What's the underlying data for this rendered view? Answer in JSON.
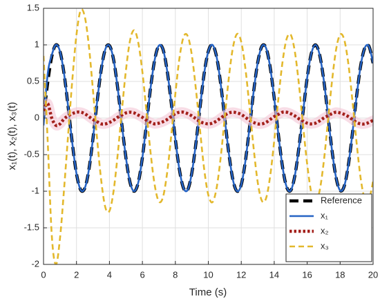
{
  "chart_data": {
    "type": "line",
    "xlabel": "Time (s)",
    "ylabel": "x₁(t), x₂(t), x₃(t)",
    "x": [
      0,
      0.25,
      0.5,
      0.75,
      1,
      1.25,
      1.5,
      1.75,
      2,
      2.25,
      2.5,
      2.75,
      3,
      3.25,
      3.5,
      3.75,
      4,
      4.25,
      4.5,
      4.75,
      5,
      5.25,
      5.5,
      5.75,
      6,
      6.25,
      6.5,
      6.75,
      7,
      7.25,
      7.5,
      7.75,
      8,
      8.25,
      8.5,
      8.75,
      9,
      9.25,
      9.5,
      9.75,
      10,
      10.25,
      10.5,
      10.75,
      11,
      11.25,
      11.5,
      11.75,
      12,
      12.25,
      12.5,
      12.75,
      13,
      13.25,
      13.5,
      13.75,
      14,
      14.25,
      14.5,
      14.75,
      15,
      15.25,
      15.5,
      15.75,
      16,
      16.25,
      16.5,
      16.75,
      17,
      17.25,
      17.5,
      17.75,
      18,
      18.25,
      18.5,
      18.75,
      19,
      19.25,
      19.5,
      19.75,
      20
    ],
    "series": [
      {
        "name": "Reference",
        "color": "#000000",
        "style": "dashed",
        "values": [
          0,
          0.48,
          0.84,
          1,
          0.91,
          0.6,
          0.14,
          -0.35,
          -0.76,
          -0.98,
          -0.96,
          -0.71,
          -0.28,
          0.22,
          0.66,
          0.94,
          0.99,
          0.8,
          0.41,
          -0.08,
          -0.54,
          -0.88,
          -1,
          -0.88,
          -0.54,
          -0.07,
          0.42,
          0.8,
          0.99,
          0.94,
          0.65,
          0.21,
          -0.29,
          -0.71,
          -0.96,
          -0.98,
          -0.75,
          -0.34,
          0.15,
          0.61,
          0.91,
          1,
          0.84,
          0.47,
          -0.01,
          -0.49,
          -0.85,
          -1,
          -0.91,
          -0.59,
          -0.13,
          0.36,
          0.76,
          0.98,
          0.96,
          0.7,
          0.27,
          -0.22,
          -0.66,
          -0.94,
          -0.99,
          -0.79,
          -0.4,
          0.08,
          0.55,
          0.88,
          1,
          0.87,
          0.53,
          0.06,
          -0.43,
          -0.81,
          -0.99,
          -0.93,
          -0.64,
          -0.2,
          0.3,
          0.72,
          0.96,
          0.98,
          0.75
        ]
      },
      {
        "name": "x₁",
        "color": "#2563c4",
        "style": "solid",
        "values": [
          -0.1,
          0.6,
          0.86,
          1,
          0.91,
          0.6,
          0.14,
          -0.35,
          -0.76,
          -0.98,
          -0.96,
          -0.71,
          -0.28,
          0.22,
          0.66,
          0.94,
          0.99,
          0.8,
          0.41,
          -0.08,
          -0.54,
          -0.88,
          -1,
          -0.88,
          -0.54,
          -0.07,
          0.42,
          0.8,
          0.99,
          0.94,
          0.65,
          0.21,
          -0.29,
          -0.71,
          -0.96,
          -0.98,
          -0.75,
          -0.34,
          0.15,
          0.61,
          0.91,
          1,
          0.84,
          0.47,
          -0.01,
          -0.49,
          -0.85,
          -1,
          -0.91,
          -0.59,
          -0.13,
          0.36,
          0.76,
          0.98,
          0.96,
          0.7,
          0.27,
          -0.22,
          -0.66,
          -0.94,
          -0.99,
          -0.79,
          -0.4,
          0.08,
          0.55,
          0.88,
          1,
          0.87,
          0.53,
          0.06,
          -0.43,
          -0.81,
          -0.99,
          -0.93,
          -0.64,
          -0.2,
          0.3,
          0.72,
          0.96,
          0.98,
          0.75
        ]
      },
      {
        "name": "x₂",
        "color": "#a3201b",
        "style": "dotted",
        "values": [
          0.1,
          0.2,
          0,
          -0.1,
          -0.08,
          -0.01,
          0.03,
          0.06,
          0.08,
          0.08,
          0.06,
          0.02,
          -0.02,
          -0.05,
          -0.08,
          -0.08,
          -0.06,
          -0.03,
          0.01,
          0.04,
          0.07,
          0.08,
          0.07,
          0.04,
          0.01,
          -0.03,
          -0.06,
          -0.08,
          -0.07,
          -0.05,
          -0.02,
          0.02,
          0.06,
          0.08,
          0.08,
          0.06,
          0.03,
          -0.01,
          -0.05,
          -0.07,
          -0.08,
          -0.07,
          -0.04,
          0,
          0.04,
          0.07,
          0.08,
          0.07,
          0.05,
          0.01,
          -0.03,
          -0.06,
          -0.08,
          -0.08,
          -0.06,
          -0.02,
          0.02,
          0.05,
          0.08,
          0.08,
          0.06,
          0.03,
          -0.01,
          -0.04,
          -0.07,
          -0.08,
          -0.07,
          -0.04,
          0,
          0.03,
          0.06,
          0.08,
          0.07,
          0.05,
          0.02,
          -0.02,
          -0.06,
          -0.08,
          -0.08,
          -0.06,
          -0.03
        ]
      },
      {
        "name": "x₃",
        "color": "#e3b82c",
        "style": "dashed-thin",
        "values": [
          0.85,
          -0.3,
          -1.6,
          -2,
          -1.64,
          -0.96,
          -0.21,
          0.53,
          1.14,
          1.47,
          1.39,
          0.99,
          0.38,
          -0.28,
          -0.85,
          -1.22,
          -1.27,
          -1,
          -0.5,
          0.09,
          0.65,
          1.06,
          1.2,
          1.03,
          0.63,
          0.08,
          -0.48,
          -0.92,
          -1.14,
          -1.08,
          -0.75,
          -0.24,
          0.33,
          0.82,
          1.11,
          1.12,
          0.86,
          0.39,
          -0.17,
          -0.7,
          -1.05,
          -1.15,
          -0.96,
          -0.54,
          0.01,
          0.56,
          0.97,
          1.15,
          1.04,
          0.68,
          0.15,
          -0.41,
          -0.88,
          -1.13,
          -1.1,
          -0.8,
          -0.31,
          0.26,
          0.76,
          1.08,
          1.14,
          0.91,
          0.46,
          -0.1,
          -0.63,
          -1.02,
          -1.15,
          -1,
          -0.61,
          -0.07,
          0.49,
          0.93,
          1.14,
          1.07,
          0.74,
          0.23,
          -0.34,
          -0.83,
          -1.11,
          -1.12,
          -0.86
        ]
      }
    ],
    "xlim": [
      0,
      20
    ],
    "xticks": [
      0,
      2,
      4,
      6,
      8,
      10,
      12,
      14,
      16,
      18,
      20
    ],
    "ylim": [
      -2,
      1.5
    ],
    "yticks": [
      -2,
      -1.5,
      -1,
      -0.5,
      0,
      0.5,
      1,
      1.5
    ],
    "grid": true,
    "legend": "lower right"
  }
}
